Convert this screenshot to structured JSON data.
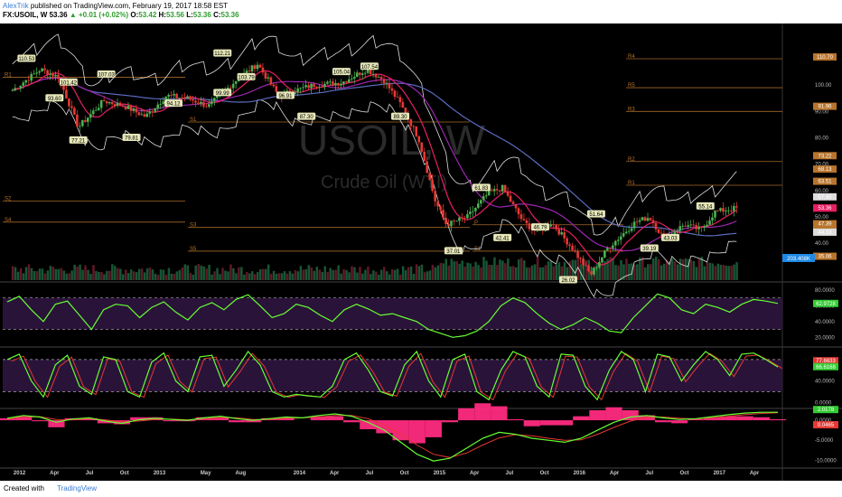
{
  "header": {
    "author": "AlexTrik",
    "published": "published on TradingView.com, February 19, 2017 18:58 EST",
    "symbol": "FX:USOIL, W",
    "last": "53.36",
    "change": "▲ +0.01 (+0.02%)",
    "o_label": "O:",
    "o_value": "53.42",
    "h_label": "H:",
    "h_value": "53.56",
    "l_label": "L:",
    "l_value": "53.36",
    "c_label": "C:",
    "c_value": "53.36"
  },
  "footer": {
    "created": "Created with",
    "brand": "TradingView"
  },
  "watermark": {
    "line1": "USOIL, W",
    "line2": "Crude Oil (WTI)"
  },
  "colors": {
    "background": "#000000",
    "candle_up": "#4caf50",
    "candle_down": "#e53935",
    "pivot": "#b8742c",
    "sma_short": "#e91e63",
    "sma_mid": "#9c27b0",
    "sma_long": "#5c6bc0",
    "bollinger": "#dddddd",
    "rsi": "#66ff33",
    "macd_hist": "#ff2a7f",
    "last_price_label": "#e91e63",
    "volume_label": "#1e88e5"
  },
  "chart_data": [
    {
      "type": "candlestick",
      "title": "USOIL, W",
      "subtitle": "Crude Oil (WTI)",
      "x_ticks": [
        "2012",
        "Apr",
        "Jul",
        "Oct",
        "2013",
        "May",
        "Aug",
        "2014",
        "Apr",
        "Jul",
        "Oct",
        "2015",
        "Apr",
        "Jul",
        "Oct",
        "2016",
        "Apr",
        "Jul",
        "Oct",
        "2017",
        "Apr"
      ],
      "y_ticks": [
        110,
        100,
        90,
        80,
        70,
        60,
        50,
        40
      ],
      "y_tick_labels": [
        "110.00",
        "100.00",
        "90.00",
        "80.00",
        "70.00",
        "60.00",
        "50.00",
        "40.00"
      ],
      "ylim": [
        26,
        122
      ],
      "close_series": [
        {
          "x": 2011.95,
          "y": 98
        },
        {
          "x": 2012.15,
          "y": 106
        },
        {
          "x": 2012.28,
          "y": 103
        },
        {
          "x": 2012.42,
          "y": 84
        },
        {
          "x": 2012.6,
          "y": 94
        },
        {
          "x": 2012.75,
          "y": 92
        },
        {
          "x": 2012.9,
          "y": 88
        },
        {
          "x": 2013.05,
          "y": 96
        },
        {
          "x": 2013.2,
          "y": 95
        },
        {
          "x": 2013.35,
          "y": 92
        },
        {
          "x": 2013.55,
          "y": 102
        },
        {
          "x": 2013.7,
          "y": 108
        },
        {
          "x": 2013.85,
          "y": 96
        },
        {
          "x": 2013.97,
          "y": 98
        },
        {
          "x": 2014.1,
          "y": 100
        },
        {
          "x": 2014.3,
          "y": 101
        },
        {
          "x": 2014.48,
          "y": 106
        },
        {
          "x": 2014.6,
          "y": 102
        },
        {
          "x": 2014.72,
          "y": 93
        },
        {
          "x": 2014.85,
          "y": 80
        },
        {
          "x": 2014.97,
          "y": 56
        },
        {
          "x": 2015.05,
          "y": 47
        },
        {
          "x": 2015.2,
          "y": 50
        },
        {
          "x": 2015.35,
          "y": 59
        },
        {
          "x": 2015.45,
          "y": 61
        },
        {
          "x": 2015.6,
          "y": 48
        },
        {
          "x": 2015.7,
          "y": 44
        },
        {
          "x": 2015.8,
          "y": 48
        },
        {
          "x": 2015.95,
          "y": 38
        },
        {
          "x": 2016.08,
          "y": 28
        },
        {
          "x": 2016.2,
          "y": 38
        },
        {
          "x": 2016.4,
          "y": 48
        },
        {
          "x": 2016.5,
          "y": 50
        },
        {
          "x": 2016.6,
          "y": 42
        },
        {
          "x": 2016.75,
          "y": 47
        },
        {
          "x": 2016.87,
          "y": 45
        },
        {
          "x": 2016.97,
          "y": 52
        },
        {
          "x": 2017.13,
          "y": 53.36
        }
      ],
      "pivots": [
        {
          "label": "R1",
          "value": 103
        },
        {
          "label": "S1",
          "value": 86
        },
        {
          "label": "S2",
          "value": 56
        },
        {
          "label": "S3",
          "value": 46
        },
        {
          "label": "S4",
          "value": 48
        },
        {
          "label": "S5",
          "value": 37
        },
        {
          "label": "R4",
          "value": 110
        },
        {
          "label": "R5",
          "value": 99
        },
        {
          "label": "R3",
          "value": 90
        },
        {
          "label": "R2",
          "value": 71
        },
        {
          "label": "R1",
          "value": 62
        },
        {
          "label": "P",
          "value": 47
        },
        {
          "label": "S1",
          "value": 37
        }
      ],
      "callouts": [
        "110.53",
        "93.60",
        "101.42",
        "77.21",
        "107.03",
        "79.81",
        "94.12",
        "99.99",
        "112.21",
        "103.79",
        "96.91",
        "87.30",
        "105.04",
        "107.54",
        "89.30",
        "37.01",
        "61.83",
        "42.41",
        "46.79",
        "26.02",
        "51.64",
        "39.19",
        "43.03",
        "55.14"
      ],
      "price_labels": [
        {
          "text": "110.70",
          "value": 110.7
        },
        {
          "text": "91.96",
          "value": 91.96
        },
        {
          "text": "73.22",
          "value": 73.22
        },
        {
          "text": "68.13",
          "value": 68.13
        },
        {
          "text": "63.51",
          "value": 63.51
        },
        {
          "text": "57.60",
          "value": 57.6
        },
        {
          "text": "53.37",
          "value": 53.37
        },
        {
          "text": "53.36",
          "value": 53.36
        },
        {
          "text": "47.39",
          "value": 47.39
        },
        {
          "text": "44.77",
          "value": 44.77
        },
        {
          "text": "44.19",
          "value": 44.19
        },
        {
          "text": "35.06",
          "value": 35.06
        }
      ],
      "volume_label": "203.408K"
    },
    {
      "type": "line",
      "name": "RSI",
      "y_ticks": [
        80,
        60,
        40,
        20
      ],
      "y_tick_labels": [
        "80.0000",
        "60.0000",
        "40.0000",
        "20.0000"
      ],
      "ylim": [
        10,
        88
      ],
      "last_label": "62.9728",
      "values": [
        65,
        72,
        55,
        40,
        62,
        66,
        48,
        30,
        55,
        62,
        60,
        45,
        58,
        65,
        52,
        42,
        58,
        64,
        55,
        68,
        74,
        60,
        45,
        50,
        62,
        58,
        48,
        40,
        55,
        62,
        56,
        48,
        50,
        45,
        40,
        30,
        25,
        20,
        22,
        28,
        40,
        60,
        70,
        64,
        50,
        38,
        30,
        36,
        45,
        38,
        28,
        26,
        45,
        60,
        75,
        70,
        55,
        50,
        62,
        58,
        52,
        62,
        68,
        66,
        63
      ]
    },
    {
      "type": "line",
      "name": "Stochastic",
      "y_ticks": [
        80,
        40,
        0
      ],
      "y_tick_labels": [
        "80.0000",
        "40.0000",
        "0.0000"
      ],
      "ylim": [
        -8,
        100
      ],
      "last_labels": [
        "77.6633",
        "66.6168"
      ],
      "values": [
        80,
        90,
        40,
        10,
        70,
        88,
        30,
        15,
        85,
        80,
        20,
        10,
        75,
        92,
        40,
        20,
        85,
        88,
        30,
        60,
        95,
        70,
        20,
        10,
        15,
        12,
        10,
        30,
        80,
        92,
        60,
        20,
        12,
        70,
        95,
        40,
        10,
        80,
        90,
        20,
        5,
        60,
        95,
        85,
        30,
        10,
        90,
        88,
        30,
        5,
        60,
        95,
        80,
        20,
        90,
        85,
        40,
        70,
        95,
        80,
        50,
        90,
        92,
        80,
        66
      ]
    },
    {
      "type": "area",
      "name": "MACD",
      "y_ticks": [
        0,
        -5,
        -10
      ],
      "y_tick_labels": [
        "0.0000",
        "-5.0000",
        "-10.0000"
      ],
      "ylim": [
        -11.5,
        2.5
      ],
      "last_labels": [
        "2.0178",
        "0.0465"
      ],
      "macd": [
        0.5,
        1.2,
        0.8,
        -0.5,
        0.3,
        0.6,
        -0.2,
        -0.8,
        0.1,
        0.5,
        0.2,
        0.0,
        0.6,
        1.0,
        0.4,
        0.0,
        0.4,
        0.8,
        0.6,
        1.2,
        1.6,
        1.0,
        -0.5,
        -2.5,
        -5.5,
        -8.5,
        -10.2,
        -9.5,
        -7.0,
        -4.5,
        -3.0,
        -3.5,
        -4.5,
        -5.0,
        -5.5,
        -4.5,
        -2.5,
        -0.5,
        0.8,
        1.2,
        0.6,
        0.2,
        0.4,
        0.9,
        1.4,
        1.8,
        2.0,
        2.0
      ],
      "signal": [
        0.3,
        0.8,
        0.9,
        0.2,
        0.1,
        0.4,
        0.1,
        -0.4,
        -0.2,
        0.2,
        0.3,
        0.1,
        0.3,
        0.7,
        0.6,
        0.2,
        0.2,
        0.5,
        0.6,
        0.8,
        1.2,
        1.2,
        0.4,
        -1.2,
        -3.5,
        -6.2,
        -8.5,
        -9.3,
        -8.2,
        -6.2,
        -4.4,
        -3.6,
        -3.9,
        -4.5,
        -5.0,
        -4.9,
        -3.5,
        -1.8,
        -0.2,
        0.7,
        0.8,
        0.5,
        0.3,
        0.6,
        1.0,
        1.4,
        1.7,
        1.9
      ]
    }
  ]
}
